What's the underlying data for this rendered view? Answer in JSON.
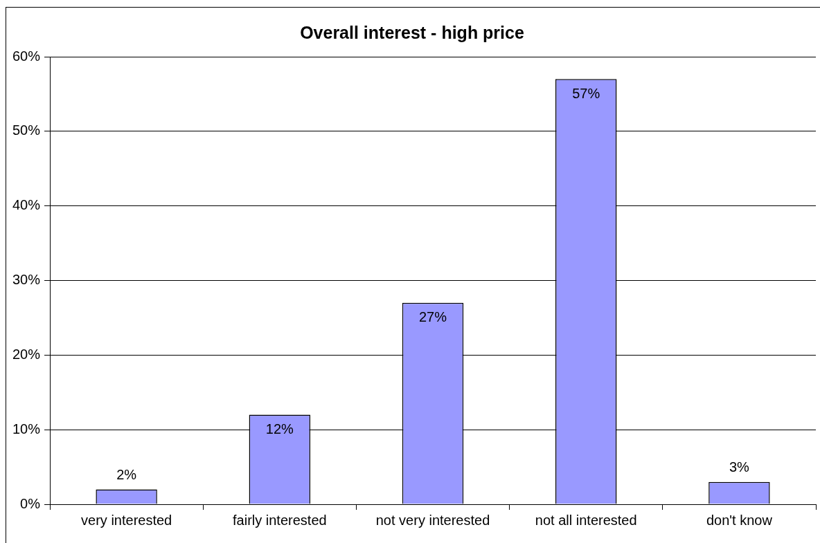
{
  "chart_data": {
    "type": "bar",
    "title": "Overall interest - high price",
    "categories": [
      "very interested",
      "fairly interested",
      "not very interested",
      "not all interested",
      "don't know"
    ],
    "values": [
      2,
      12,
      27,
      57,
      3
    ],
    "value_labels": [
      "2%",
      "12%",
      "27%",
      "57%",
      "3%"
    ],
    "color": "#9999ff",
    "ylim": [
      0,
      60
    ],
    "yticks": [
      {
        "value": 0,
        "label": "0%"
      },
      {
        "value": 10,
        "label": "10%"
      },
      {
        "value": 20,
        "label": "20%"
      },
      {
        "value": 30,
        "label": "30%"
      },
      {
        "value": 40,
        "label": "40%"
      },
      {
        "value": 50,
        "label": "50%"
      },
      {
        "value": 60,
        "label": "60%"
      }
    ],
    "grid": "y",
    "legend": false
  }
}
